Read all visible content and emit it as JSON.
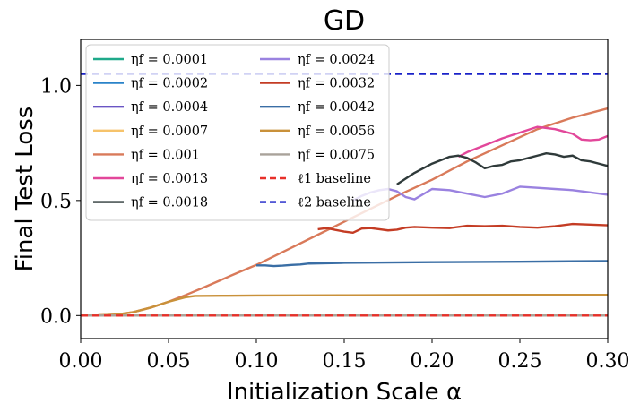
{
  "chart_data": {
    "type": "line",
    "title": "GD",
    "xlabel": "Initialization Scale α",
    "ylabel": "Final Test Loss",
    "xlim": [
      0.0,
      0.3
    ],
    "ylim": [
      -0.1,
      1.2
    ],
    "xticks": [
      {
        "value": 0.0,
        "label": "0.00"
      },
      {
        "value": 0.05,
        "label": "0.05"
      },
      {
        "value": 0.1,
        "label": "0.10"
      },
      {
        "value": 0.15,
        "label": "0.15"
      },
      {
        "value": 0.2,
        "label": "0.20"
      },
      {
        "value": 0.25,
        "label": "0.25"
      },
      {
        "value": 0.3,
        "label": "0.30"
      }
    ],
    "yticks": [
      {
        "value": 0.0,
        "label": "0.0"
      },
      {
        "value": 0.5,
        "label": "0.5"
      },
      {
        "value": 1.0,
        "label": "1.0"
      }
    ],
    "legend_position": "top-left",
    "series": [
      {
        "name": "ηf = 0.0001",
        "color": "#1fa98a",
        "x": [
          0.0,
          0.3
        ],
        "values": [
          0.0,
          0.0
        ]
      },
      {
        "name": "ηf = 0.0002",
        "color": "#2a83c9",
        "x": [
          0.0,
          0.3
        ],
        "values": [
          0.0,
          0.0
        ]
      },
      {
        "name": "ηf = 0.0004",
        "color": "#6a55c4",
        "x": [
          0.0,
          0.3
        ],
        "values": [
          0.0,
          0.0
        ]
      },
      {
        "name": "ηf = 0.0007",
        "color": "#f6c36b",
        "x": [
          0.0,
          0.3
        ],
        "values": [
          0.0,
          0.0
        ]
      },
      {
        "name": "ηf = 0.001",
        "color": "#d97a5a",
        "x": [
          0.0,
          0.01,
          0.02,
          0.03,
          0.04,
          0.05,
          0.06,
          0.07,
          0.08,
          0.09,
          0.1,
          0.12,
          0.14,
          0.16,
          0.18,
          0.2,
          0.22,
          0.24,
          0.26,
          0.28,
          0.3
        ],
        "values": [
          0.0,
          0.001,
          0.004,
          0.015,
          0.035,
          0.06,
          0.09,
          0.122,
          0.155,
          0.188,
          0.22,
          0.295,
          0.37,
          0.445,
          0.52,
          0.59,
          0.67,
          0.74,
          0.81,
          0.86,
          0.9
        ]
      },
      {
        "name": "ηf = 0.0013",
        "color": "#e2479a",
        "x": [
          0.215,
          0.22,
          0.24,
          0.26,
          0.27,
          0.28,
          0.285,
          0.29,
          0.295,
          0.3
        ],
        "values": [
          0.69,
          0.71,
          0.77,
          0.82,
          0.81,
          0.79,
          0.765,
          0.762,
          0.765,
          0.78
        ]
      },
      {
        "name": "ηf = 0.0018",
        "color": "#2f3a3a",
        "x": [
          0.18,
          0.19,
          0.2,
          0.21,
          0.215,
          0.22,
          0.225,
          0.23,
          0.235,
          0.24,
          0.245,
          0.25,
          0.255,
          0.26,
          0.265,
          0.27,
          0.275,
          0.28,
          0.285,
          0.29,
          0.295,
          0.3
        ],
        "values": [
          0.57,
          0.62,
          0.66,
          0.69,
          0.695,
          0.685,
          0.665,
          0.64,
          0.65,
          0.655,
          0.67,
          0.675,
          0.685,
          0.695,
          0.705,
          0.7,
          0.69,
          0.695,
          0.675,
          0.67,
          0.66,
          0.65
        ]
      },
      {
        "name": "ηf = 0.0024",
        "color": "#9a82e0",
        "x": [
          0.155,
          0.16,
          0.165,
          0.17,
          0.175,
          0.18,
          0.185,
          0.19,
          0.2,
          0.21,
          0.22,
          0.23,
          0.24,
          0.25,
          0.26,
          0.27,
          0.28,
          0.29,
          0.3
        ],
        "values": [
          0.5,
          0.52,
          0.535,
          0.545,
          0.55,
          0.54,
          0.515,
          0.505,
          0.55,
          0.545,
          0.53,
          0.515,
          0.53,
          0.56,
          0.555,
          0.55,
          0.545,
          0.535,
          0.525
        ]
      },
      {
        "name": "ηf = 0.0032",
        "color": "#c43c24",
        "x": [
          0.135,
          0.14,
          0.145,
          0.15,
          0.155,
          0.16,
          0.165,
          0.17,
          0.175,
          0.18,
          0.185,
          0.19,
          0.2,
          0.21,
          0.22,
          0.23,
          0.24,
          0.25,
          0.26,
          0.27,
          0.28,
          0.29,
          0.3
        ],
        "values": [
          0.375,
          0.38,
          0.372,
          0.365,
          0.36,
          0.378,
          0.38,
          0.375,
          0.37,
          0.373,
          0.382,
          0.385,
          0.382,
          0.38,
          0.39,
          0.388,
          0.39,
          0.385,
          0.382,
          0.388,
          0.398,
          0.395,
          0.392
        ]
      },
      {
        "name": "ηf = 0.0042",
        "color": "#3a6ea5",
        "x": [
          0.1,
          0.105,
          0.11,
          0.115,
          0.12,
          0.125,
          0.13,
          0.15,
          0.2,
          0.25,
          0.3
        ],
        "values": [
          0.218,
          0.218,
          0.215,
          0.217,
          0.22,
          0.222,
          0.226,
          0.229,
          0.232,
          0.234,
          0.237
        ]
      },
      {
        "name": "ηf = 0.0056",
        "color": "#c9913a",
        "x": [
          0.0,
          0.01,
          0.02,
          0.03,
          0.04,
          0.05,
          0.06,
          0.065,
          0.08,
          0.1,
          0.15,
          0.2,
          0.25,
          0.3
        ],
        "values": [
          0.0,
          0.001,
          0.004,
          0.015,
          0.035,
          0.06,
          0.08,
          0.085,
          0.086,
          0.087,
          0.088,
          0.089,
          0.09,
          0.09
        ]
      },
      {
        "name": "ηf = 0.0075",
        "color": "#a9a29a",
        "x": [
          0.0,
          0.3
        ],
        "values": [
          0.0,
          0.0
        ]
      },
      {
        "name": "ℓ1 baseline",
        "color": "#e8302a",
        "dashed": true,
        "x": [
          0.0,
          0.3
        ],
        "values": [
          0.0,
          0.0
        ]
      },
      {
        "name": "ℓ2 baseline",
        "color": "#1a22c8",
        "dashed": true,
        "x": [
          0.0,
          0.3
        ],
        "values": [
          1.05,
          1.05
        ]
      }
    ]
  }
}
